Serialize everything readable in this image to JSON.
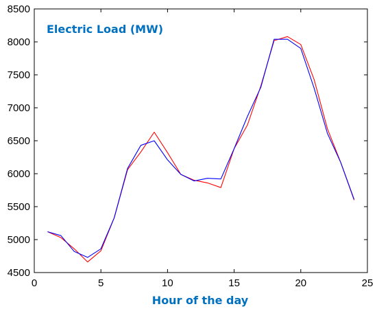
{
  "chart_data": {
    "type": "line",
    "title": "Electric Load (MW)",
    "xlabel": "Hour of the day",
    "ylabel": "",
    "xlim": [
      0,
      25
    ],
    "ylim": [
      4500,
      8500
    ],
    "xticks": [
      0,
      5,
      10,
      15,
      20,
      25
    ],
    "yticks": [
      4500,
      5000,
      5500,
      6000,
      6500,
      7000,
      7500,
      8000,
      8500
    ],
    "grid": false,
    "legend": "none",
    "x": [
      1,
      2,
      3,
      4,
      5,
      6,
      7,
      8,
      9,
      10,
      11,
      12,
      13,
      14,
      15,
      16,
      17,
      18,
      19,
      20,
      21,
      22,
      23,
      24
    ],
    "series": [
      {
        "color": "#0000ff",
        "values": [
          5120,
          5060,
          4820,
          4730,
          4860,
          5330,
          6080,
          6430,
          6500,
          6210,
          5990,
          5890,
          5930,
          5920,
          6380,
          6870,
          7310,
          8040,
          8040,
          7900,
          7300,
          6610,
          6170,
          5610
        ]
      },
      {
        "color": "#ff0000",
        "values": [
          5120,
          5030,
          4860,
          4660,
          4830,
          5330,
          6060,
          6330,
          6630,
          6320,
          5990,
          5900,
          5860,
          5790,
          6380,
          6740,
          7330,
          8020,
          8080,
          7960,
          7430,
          6680,
          6170,
          5600
        ]
      }
    ],
    "colors": {
      "title": "#0070c0",
      "axis_title": "#0070c0",
      "axes": "#000000"
    }
  }
}
